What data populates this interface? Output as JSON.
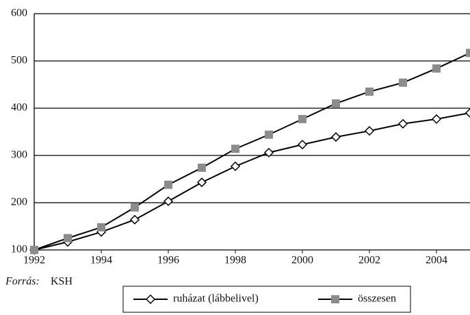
{
  "chart_data": {
    "type": "line",
    "x": [
      1992,
      1993,
      1994,
      1995,
      1996,
      1997,
      1998,
      1999,
      2000,
      2001,
      2002,
      2003,
      2004,
      2005
    ],
    "series": [
      {
        "name": "ruházat (lábbelivel)",
        "color": "#000000",
        "marker": "diamond",
        "marker_color": "#ffffff",
        "values": [
          100,
          117,
          138,
          164,
          203,
          243,
          277,
          306,
          323,
          339,
          352,
          367,
          377,
          390
        ]
      },
      {
        "name": "összesen",
        "color": "#000000",
        "marker": "square",
        "marker_color": "#8c8c8c",
        "values": [
          100,
          125,
          148,
          190,
          238,
          274,
          314,
          344,
          377,
          410,
          435,
          454,
          484,
          517
        ]
      }
    ],
    "xlim": [
      1992,
      2005
    ],
    "xticks": [
      1992,
      1994,
      1996,
      1998,
      2000,
      2002,
      2004
    ],
    "ylim": [
      100,
      600
    ],
    "yticks": [
      100,
      200,
      300,
      400,
      500,
      600
    ],
    "grid": true,
    "legend": "bottom",
    "source_label": "Forrás:",
    "source": "KSH"
  }
}
